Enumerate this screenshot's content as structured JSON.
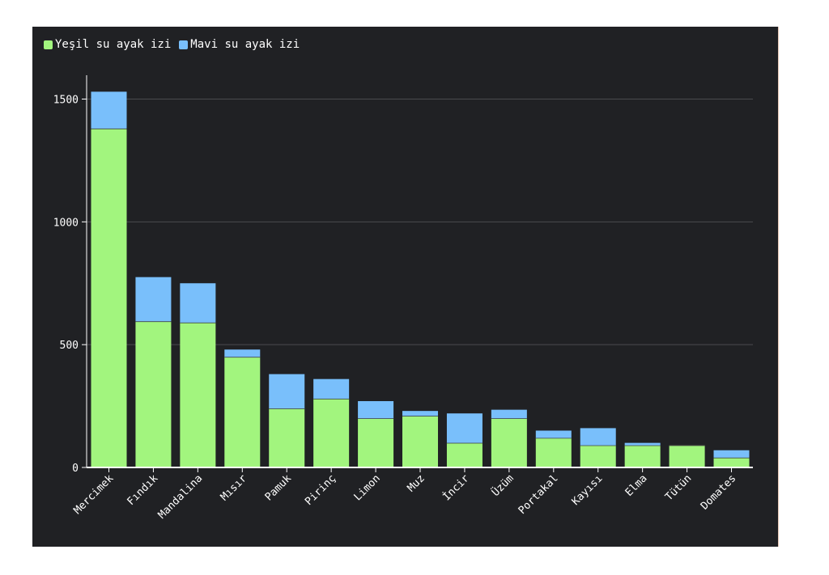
{
  "chart_data": {
    "type": "bar",
    "stacked": true,
    "title": "",
    "xlabel": "",
    "ylabel": "",
    "categories": [
      "Mercimek",
      "Fındık",
      "Mandalina",
      "Mısır",
      "Pamuk",
      "Pirinç",
      "Limon",
      "Muz",
      "İncir",
      "Üzüm",
      "Portakal",
      "Kayısı",
      "Elma",
      "Tütün",
      "Domates"
    ],
    "series": [
      {
        "name": "Yeşil su ayak izi",
        "color": "#a2f57e",
        "values": [
          1380,
          595,
          590,
          450,
          240,
          280,
          200,
          210,
          100,
          200,
          120,
          90,
          90,
          90,
          40
        ]
      },
      {
        "name": "Mavi su ayak izi",
        "color": "#79bffb",
        "values": [
          150,
          180,
          160,
          30,
          140,
          80,
          70,
          20,
          120,
          35,
          30,
          70,
          10,
          0,
          30
        ]
      }
    ],
    "ylim": [
      0,
      1550
    ],
    "yticks": [
      0,
      500,
      1000,
      1500
    ],
    "grid": true,
    "legend": "top-left",
    "colors": {
      "background": "#202124",
      "grid": "#4a4b4e",
      "axis": "#ffffff",
      "text": "#ffffff"
    }
  }
}
